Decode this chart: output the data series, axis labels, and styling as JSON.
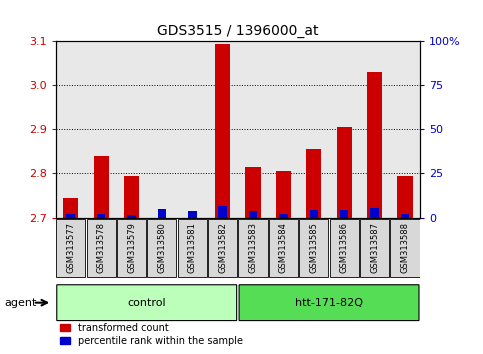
{
  "title": "GDS3515 / 1396000_at",
  "samples": [
    "GSM313577",
    "GSM313578",
    "GSM313579",
    "GSM313580",
    "GSM313581",
    "GSM313582",
    "GSM313583",
    "GSM313584",
    "GSM313585",
    "GSM313586",
    "GSM313587",
    "GSM313588"
  ],
  "red_values": [
    2.745,
    2.84,
    2.795,
    2.7,
    2.7,
    3.092,
    2.815,
    2.805,
    2.855,
    2.905,
    3.03,
    2.795
  ],
  "blue_percentiles": [
    2.0,
    2.0,
    1.5,
    5.0,
    4.0,
    6.5,
    4.0,
    2.0,
    4.5,
    4.5,
    5.5,
    2.0
  ],
  "base": 2.7,
  "ylim_left": [
    2.7,
    3.1
  ],
  "yticks_left": [
    2.7,
    2.8,
    2.9,
    3.0,
    3.1
  ],
  "yticks_right": [
    0,
    25,
    50,
    75,
    100
  ],
  "ylim_right": [
    0,
    100
  ],
  "group_ctrl_label": "control",
  "group_ctrl_color": "#bbffbb",
  "group_ctrl_dark": "#55dd55",
  "group_htt_label": "htt-171-82Q",
  "group_htt_color": "#55dd55",
  "bar_color_red": "#cc0000",
  "bar_color_blue": "#0000cc",
  "bg_color_plot": "#e8e8e8",
  "bg_color_fig": "#ffffff",
  "tick_color_left": "#cc0000",
  "tick_color_right": "#0000cc",
  "legend_red": "transformed count",
  "legend_blue": "percentile rank within the sample",
  "grid_color": "#000000",
  "bar_width": 0.5,
  "blue_bar_width": 0.28
}
